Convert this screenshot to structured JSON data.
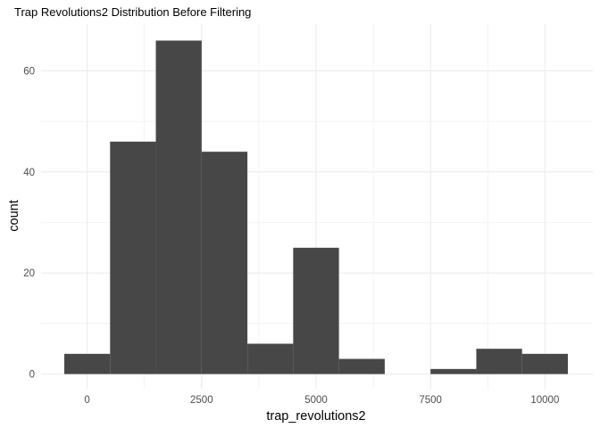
{
  "chart_data": {
    "type": "bar",
    "title": "Trap Revolutions2 Distribution Before Filtering",
    "xlabel": "trap_revolutions2",
    "ylabel": "count",
    "binwidth": 1000,
    "bins": [
      {
        "x": 0,
        "count": 4
      },
      {
        "x": 1000,
        "count": 46
      },
      {
        "x": 2000,
        "count": 66
      },
      {
        "x": 3000,
        "count": 44
      },
      {
        "x": 4000,
        "count": 6
      },
      {
        "x": 5000,
        "count": 25
      },
      {
        "x": 6000,
        "count": 3
      },
      {
        "x": 7000,
        "count": 0
      },
      {
        "x": 8000,
        "count": 1
      },
      {
        "x": 9000,
        "count": 5
      },
      {
        "x": 10000,
        "count": 4
      }
    ],
    "xlim": [
      -1000,
      11000
    ],
    "ylim": [
      0,
      70
    ],
    "x_ticks": [
      0,
      2500,
      5000,
      7500,
      10000
    ],
    "x_tick_labels": [
      "0",
      "2500",
      "5000",
      "7500",
      "10000"
    ],
    "y_ticks": [
      0,
      20,
      40,
      60
    ],
    "y_tick_labels": [
      "0",
      "20",
      "40",
      "60"
    ],
    "bar_color": "#474747",
    "grid": true,
    "legend": "none"
  }
}
